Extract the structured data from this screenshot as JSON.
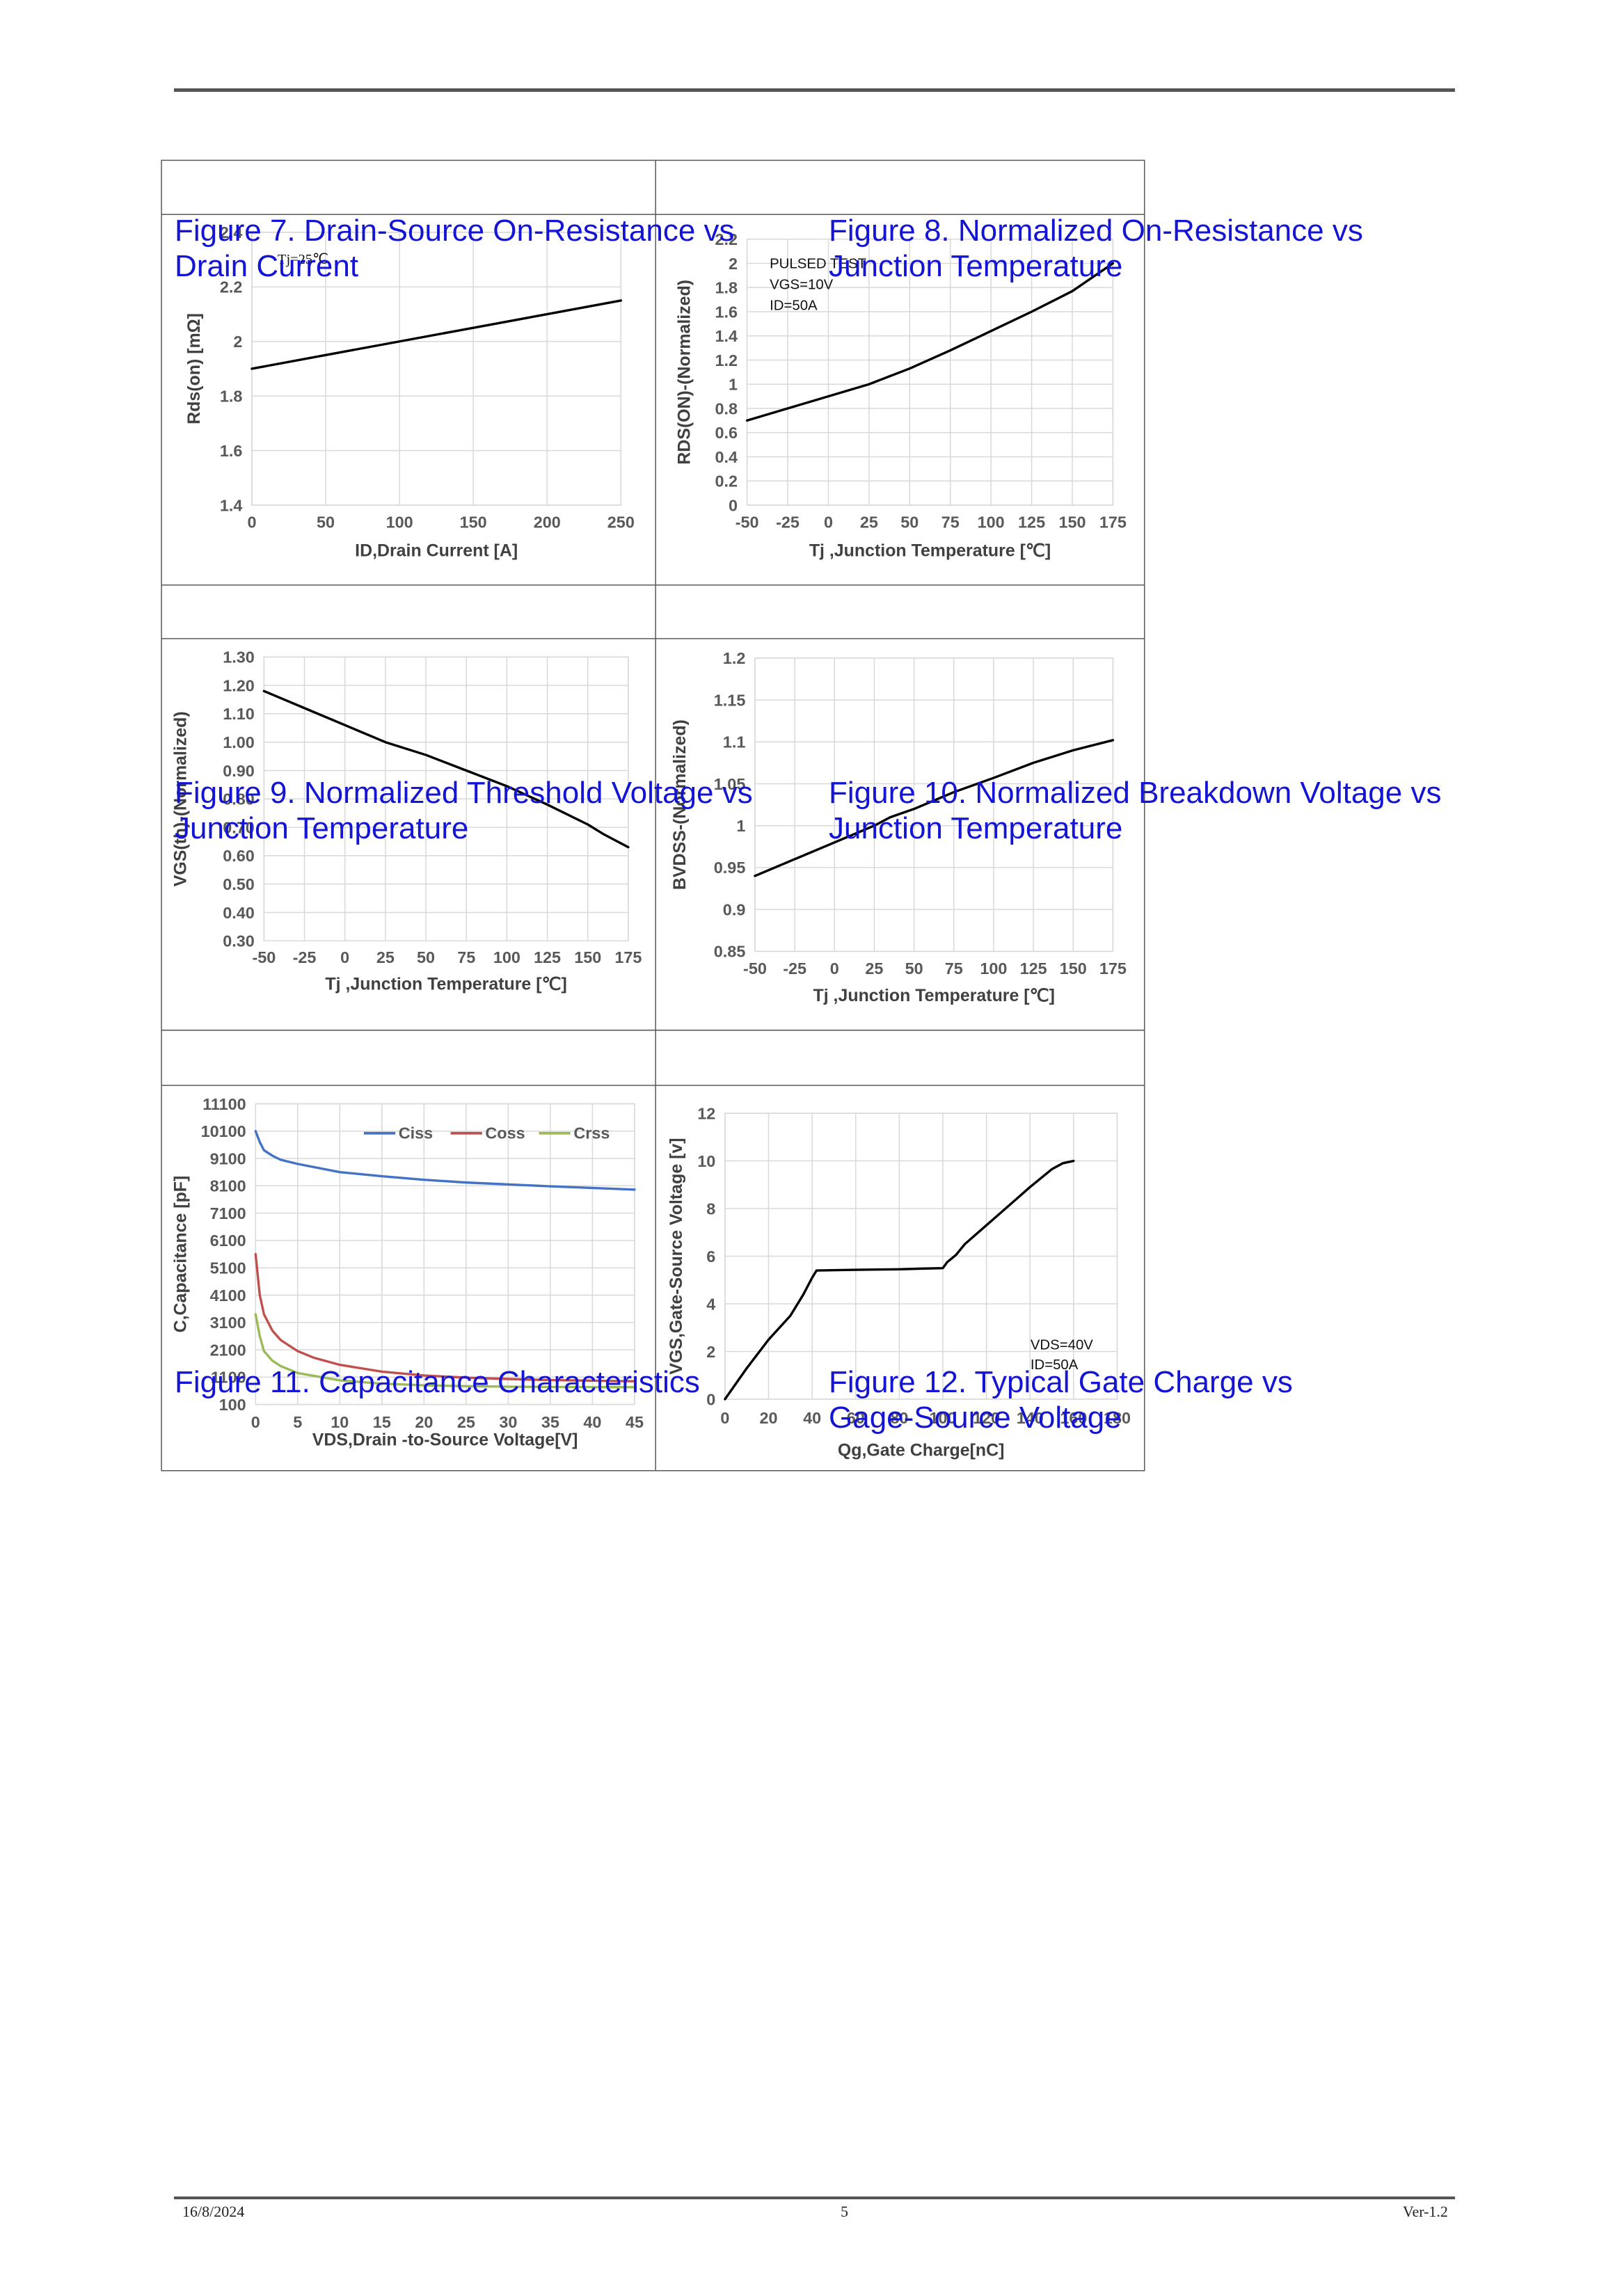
{
  "footer": {
    "date": "16/8/2024",
    "page": "5",
    "version": "Ver-1.2"
  },
  "charts": [
    {
      "title_lines": [
        "Figure 7. Drain-Source On-Resistance vs",
        "Drain Current"
      ],
      "annotation": [
        "Tj=25℃"
      ]
    },
    {
      "title_lines": [
        "Figure 8. Normalized On-Resistance vs",
        "Junction Temperature"
      ],
      "annotation": [
        "PULSED TEST",
        "VGS=10V",
        "ID=50A"
      ]
    },
    {
      "title_lines": [
        "Figure 9. Normalized Threshold Voltage vs",
        "Junction Temperature"
      ],
      "annotation": []
    },
    {
      "title_lines": [
        "Figure 10. Normalized Breakdown Voltage vs",
        "Junction Temperature"
      ],
      "annotation": []
    },
    {
      "title_lines": [
        "Figure 11. Capacitance Characteristics"
      ],
      "annotation": []
    },
    {
      "title_lines": [
        "Figure 12. Typical Gate Charge vs",
        "Gage-Source Voltage"
      ],
      "annotation": [
        "VDS=40V",
        "ID=50A"
      ]
    }
  ],
  "chart_data": [
    {
      "type": "line",
      "title": "Figure 7. Drain-Source On-Resistance vs Drain Current",
      "xlabel": "ID,Drain Current [A]",
      "ylabel": "Rds(on) [mΩ]",
      "xlim": [
        0,
        250
      ],
      "ylim": [
        1.4,
        2.4
      ],
      "x_ticks": [
        "0",
        "50",
        "100",
        "150",
        "200",
        "250"
      ],
      "y_ticks": [
        "1.4",
        "1.6",
        "1.8",
        "2",
        "2.2",
        "2.4"
      ],
      "grid": true,
      "series": [
        {
          "color": "#000000",
          "x": [
            0,
            50,
            100,
            150,
            200,
            250
          ],
          "y": [
            1.9,
            1.95,
            2.0,
            2.05,
            2.1,
            2.15
          ]
        }
      ]
    },
    {
      "type": "line",
      "title": "Figure 8. Normalized On-Resistance vs Junction Temperature",
      "xlabel": "Tj ,Junction Temperature [℃]",
      "ylabel": "RDS(ON)-(Normalized)",
      "xlim": [
        -50,
        175
      ],
      "ylim": [
        0,
        2.2
      ],
      "x_ticks": [
        "-50",
        "-25",
        "0",
        "25",
        "50",
        "75",
        "100",
        "125",
        "150",
        "175"
      ],
      "y_ticks": [
        "0",
        "0.2",
        "0.4",
        "0.6",
        "0.8",
        "1",
        "1.2",
        "1.4",
        "1.6",
        "1.8",
        "2",
        "2.2"
      ],
      "grid": true,
      "series": [
        {
          "color": "#000000",
          "x": [
            -50,
            -25,
            0,
            25,
            50,
            75,
            100,
            125,
            150,
            175
          ],
          "y": [
            0.7,
            0.8,
            0.9,
            1.0,
            1.13,
            1.28,
            1.44,
            1.6,
            1.77,
            2.0
          ]
        }
      ]
    },
    {
      "type": "line",
      "title": "Figure 9. Normalized Threshold Voltage vs Junction Temperature",
      "xlabel": "Tj ,Junction Temperature [℃]",
      "ylabel": "VGS(th)-(Normalized)",
      "xlim": [
        -50,
        175
      ],
      "ylim": [
        0.3,
        1.3
      ],
      "x_ticks": [
        "-50",
        "-25",
        "0",
        "25",
        "50",
        "75",
        "100",
        "125",
        "150",
        "175"
      ],
      "y_ticks": [
        "0.30",
        "0.40",
        "0.50",
        "0.60",
        "0.70",
        "0.80",
        "0.90",
        "1.00",
        "1.10",
        "1.20",
        "1.30"
      ],
      "grid": true,
      "series": [
        {
          "color": "#000000",
          "x": [
            -50,
            -25,
            0,
            25,
            50,
            75,
            100,
            125,
            150,
            160,
            175
          ],
          "y": [
            1.18,
            1.12,
            1.06,
            1.0,
            0.955,
            0.9,
            0.845,
            0.78,
            0.71,
            0.675,
            0.63
          ]
        }
      ]
    },
    {
      "type": "line",
      "title": "Figure 10. Normalized Breakdown Voltage vs Junction Temperature",
      "xlabel": "Tj ,Junction Temperature [℃]",
      "ylabel": "BVDSS-(Normalized)",
      "xlim": [
        -50,
        175
      ],
      "ylim": [
        0.85,
        1.2
      ],
      "x_ticks": [
        "-50",
        "-25",
        "0",
        "25",
        "50",
        "75",
        "100",
        "125",
        "150",
        "175"
      ],
      "y_ticks": [
        "0.85",
        "0.9",
        "0.95",
        "1",
        "1.05",
        "1.1",
        "1.15",
        "1.2"
      ],
      "grid": true,
      "series": [
        {
          "color": "#000000",
          "x": [
            -50,
            -25,
            0,
            25,
            35,
            50,
            75,
            100,
            125,
            150,
            175
          ],
          "y": [
            0.94,
            0.96,
            0.98,
            1.0,
            1.01,
            1.02,
            1.04,
            1.057,
            1.075,
            1.09,
            1.102
          ]
        }
      ]
    },
    {
      "type": "line",
      "title": "Figure 11. Capacitance Characteristics",
      "xlabel": "VDS,Drain -to-Source Voltage[V]",
      "ylabel": "C,Capacitance [pF]",
      "xlim": [
        0,
        45
      ],
      "ylim": [
        100,
        11100
      ],
      "x_ticks": [
        "0",
        "5",
        "10",
        "15",
        "20",
        "25",
        "30",
        "35",
        "40",
        "45"
      ],
      "y_ticks": [
        "100",
        "1100",
        "2100",
        "3100",
        "4100",
        "5100",
        "6100",
        "7100",
        "8100",
        "9100",
        "10100",
        "11100"
      ],
      "grid": true,
      "legend_position": "top-right",
      "series": [
        {
          "name": "Ciss",
          "color": "#4472c4",
          "x": [
            0,
            0.5,
            1,
            2,
            3,
            5,
            10,
            15,
            20,
            25,
            30,
            35,
            40,
            45
          ],
          "y": [
            10100,
            9700,
            9400,
            9200,
            9050,
            8900,
            8600,
            8450,
            8320,
            8220,
            8150,
            8080,
            8020,
            7960
          ]
        },
        {
          "name": "Coss",
          "color": "#c0504d",
          "x": [
            0,
            0.5,
            1,
            2,
            3,
            5,
            7,
            10,
            15,
            20,
            25,
            30,
            35,
            40,
            45
          ],
          "y": [
            5600,
            4100,
            3400,
            2800,
            2450,
            2050,
            1800,
            1550,
            1300,
            1160,
            1080,
            1030,
            990,
            970,
            950
          ]
        },
        {
          "name": "Crss",
          "color": "#9bbb59",
          "x": [
            0,
            0.5,
            1,
            2,
            3,
            5,
            10,
            15,
            20,
            25,
            30,
            35,
            40,
            45
          ],
          "y": [
            3400,
            2600,
            2050,
            1700,
            1500,
            1250,
            980,
            860,
            800,
            770,
            750,
            740,
            735,
            730
          ]
        }
      ]
    },
    {
      "type": "line",
      "title": "Figure 12. Typical Gate Charge vs Gage-Source Voltage",
      "xlabel": "Qg,Gate Charge[nC]",
      "ylabel": "VGS,Gate-Source Voltage [v]",
      "xlim": [
        0,
        180
      ],
      "ylim": [
        0,
        12
      ],
      "x_ticks": [
        "0",
        "20",
        "40",
        "60",
        "80",
        "100",
        "120",
        "140",
        "160",
        "180"
      ],
      "y_ticks": [
        "0",
        "2",
        "4",
        "6",
        "8",
        "10",
        "12"
      ],
      "grid": true,
      "series": [
        {
          "color": "#000000",
          "x": [
            0,
            10,
            20,
            30,
            36,
            40,
            42,
            60,
            80,
            90,
            100,
            102,
            106,
            110,
            120,
            130,
            140,
            150,
            155,
            160
          ],
          "y": [
            0,
            1.3,
            2.5,
            3.5,
            4.4,
            5.1,
            5.4,
            5.43,
            5.45,
            5.48,
            5.5,
            5.75,
            6.05,
            6.5,
            7.3,
            8.1,
            8.9,
            9.65,
            9.9,
            10.0
          ]
        }
      ]
    }
  ]
}
